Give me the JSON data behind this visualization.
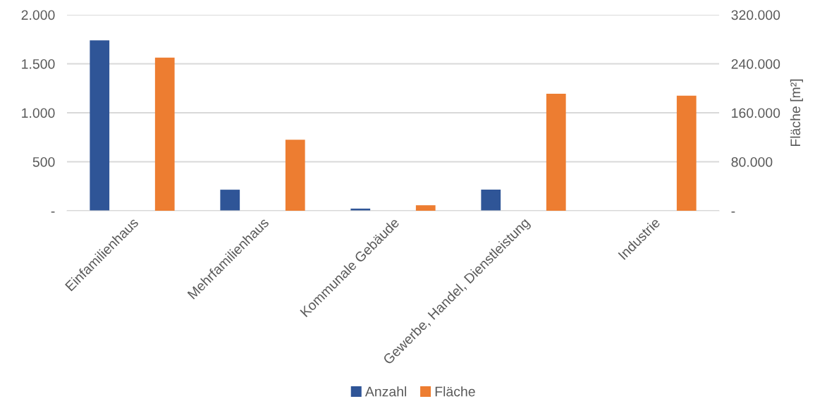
{
  "chart_data": {
    "type": "bar",
    "categories": [
      "Einfamilienhaus",
      "Mehrfamilienhaus",
      "Kommunale Gebäude",
      "Gewerbe, Handel, Dienstleistung",
      "Industrie"
    ],
    "series": [
      {
        "name": "Anzahl",
        "color": "#2f5597",
        "values": [
          1740,
          215,
          22,
          216,
          null
        ]
      },
      {
        "name": "Fläche",
        "color": "#ed7d31",
        "axis": "y2",
        "values": [
          250000,
          116000,
          9000,
          191000,
          188000
        ]
      }
    ],
    "y2label": "Fläche [m²]",
    "ylim": [
      0,
      2000
    ],
    "yticks": [
      {
        "value": 0,
        "label": "-"
      },
      {
        "value": 500,
        "label": "500"
      },
      {
        "value": 1000,
        "label": "1.000"
      },
      {
        "value": 1500,
        "label": "1.500"
      },
      {
        "value": 2000,
        "label": "2.000"
      }
    ],
    "y2lim": [
      0,
      320000
    ],
    "y2ticks": [
      {
        "value": 0,
        "label": "-"
      },
      {
        "value": 80000,
        "label": "80.000"
      },
      {
        "value": 160000,
        "label": "160.000"
      },
      {
        "value": 240000,
        "label": "240.000"
      },
      {
        "value": 320000,
        "label": "320.000"
      }
    ],
    "grid": "y",
    "legend": "bottom"
  }
}
